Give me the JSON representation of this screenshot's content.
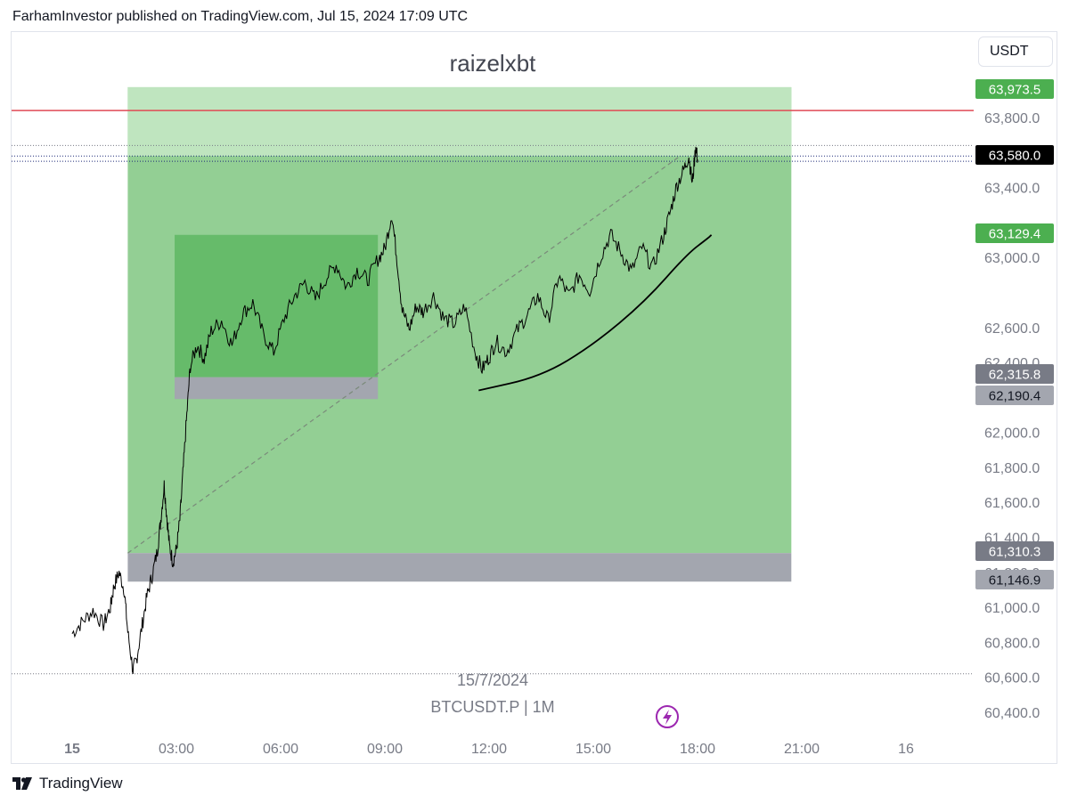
{
  "header": {
    "text": "FarhamInvestor published on TradingView.com, Jul 15, 2024 17:09 UTC"
  },
  "currency_button": {
    "label": "USDT"
  },
  "footer": {
    "brand": "TradingView"
  },
  "colors": {
    "up_zone": "#93cf94",
    "up_zone_light": "#bfe5bf",
    "inner_zone": "#66bb6a",
    "stop_zone": "#a3a6af",
    "red_line": "#e04a55",
    "candle": "#000000",
    "badge_green": "#4caf50",
    "badge_black": "#000000",
    "badge_grey_dark": "#787b86",
    "badge_grey_light": "#a3a6af",
    "axis_text": "#787b86",
    "lightning": "#9c27b0"
  },
  "chart_data": {
    "type": "line",
    "symbol": "BTCUSDT.P | 1M",
    "title": "raizelxbt",
    "date_watermark": "15/7/2024",
    "ylim": [
      60300,
      64100
    ],
    "x_range_hours": [
      -2,
      25.4
    ],
    "y_ticks": [
      "63,800.0",
      "63,400.0",
      "63,000.0",
      "62,600.0",
      "62,400.0",
      "62,000.0",
      "61,800.0",
      "61,600.0",
      "61,400.0",
      "61,200.0",
      "61,000.0",
      "60,800.0",
      "60,600.0",
      "60,400.0"
    ],
    "y_tick_values": [
      63800,
      63400,
      63000,
      62600,
      62400,
      62000,
      61800,
      61600,
      61400,
      61200,
      61000,
      60800,
      60600,
      60400
    ],
    "x_ticks": [
      "15",
      "03:00",
      "06:00",
      "09:00",
      "12:00",
      "15:00",
      "18:00",
      "21:00",
      "16"
    ],
    "x_tick_hours": [
      0,
      3,
      6,
      9,
      12,
      15,
      18,
      21,
      24
    ],
    "price_badges": [
      {
        "label": "63,973.5",
        "value": 63973.5,
        "style": "green"
      },
      {
        "label": "63,580.0",
        "value": 63580.0,
        "style": "black"
      },
      {
        "label": "63,129.4",
        "value": 63129.4,
        "style": "green"
      },
      {
        "label": "62,315.8",
        "value": 62315.8,
        "style": "grey_dark"
      },
      {
        "label": "62,190.4",
        "value": 62190.4,
        "style": "grey_light"
      },
      {
        "label": "61,310.3",
        "value": 61310.3,
        "style": "grey_dark"
      },
      {
        "label": "61,146.9",
        "value": 61146.9,
        "style": "grey_light"
      }
    ],
    "horizontal_lines": [
      {
        "value": 63840,
        "style": "red"
      },
      {
        "value": 63640,
        "style": "dotted"
      },
      {
        "value": 63580,
        "style": "dotted_blue"
      },
      {
        "value": 63550,
        "style": "dotted_blue"
      },
      {
        "value": 60620,
        "style": "dotted"
      }
    ],
    "zones": [
      {
        "kind": "target",
        "x": [
          1.6,
          20.7
        ],
        "y": [
          61310.3,
          63973.5
        ]
      },
      {
        "kind": "inner",
        "x": [
          2.95,
          8.8
        ],
        "y": [
          62315.8,
          63129.4
        ]
      },
      {
        "kind": "inner_stop",
        "x": [
          2.95,
          8.8
        ],
        "y": [
          62190.4,
          62315.8
        ]
      },
      {
        "kind": "stop",
        "x": [
          1.6,
          20.7
        ],
        "y": [
          61146.9,
          61310.3
        ]
      }
    ],
    "diagonal_line": {
      "x": [
        1.6,
        17.5
      ],
      "y": [
        61310,
        63580
      ]
    },
    "curve_points": [
      [
        11.7,
        62240
      ],
      [
        13.5,
        62320
      ],
      [
        15.0,
        62500
      ],
      [
        16.5,
        62750
      ],
      [
        17.7,
        63020
      ],
      [
        18.3,
        63110
      ],
      [
        18.4,
        63129
      ]
    ],
    "price_path": [
      [
        0.0,
        60850
      ],
      [
        0.3,
        60920
      ],
      [
        0.6,
        60980
      ],
      [
        0.9,
        60900
      ],
      [
        1.1,
        61000
      ],
      [
        1.2,
        61120
      ],
      [
        1.35,
        61200
      ],
      [
        1.5,
        61100
      ],
      [
        1.6,
        60860
      ],
      [
        1.75,
        60640
      ],
      [
        1.85,
        60700
      ],
      [
        2.0,
        60880
      ],
      [
        2.15,
        61060
      ],
      [
        2.3,
        61180
      ],
      [
        2.45,
        61320
      ],
      [
        2.55,
        61500
      ],
      [
        2.65,
        61700
      ],
      [
        2.72,
        61530
      ],
      [
        2.8,
        61350
      ],
      [
        2.9,
        61260
      ],
      [
        3.0,
        61330
      ],
      [
        3.1,
        61500
      ],
      [
        3.2,
        61800
      ],
      [
        3.3,
        62100
      ],
      [
        3.4,
        62380
      ],
      [
        3.6,
        62500
      ],
      [
        3.8,
        62420
      ],
      [
        4.0,
        62580
      ],
      [
        4.3,
        62640
      ],
      [
        4.6,
        62500
      ],
      [
        4.9,
        62680
      ],
      [
        5.2,
        62740
      ],
      [
        5.5,
        62560
      ],
      [
        5.8,
        62460
      ],
      [
        6.1,
        62650
      ],
      [
        6.4,
        62780
      ],
      [
        6.7,
        62860
      ],
      [
        7.0,
        62760
      ],
      [
        7.3,
        62880
      ],
      [
        7.6,
        62960
      ],
      [
        7.9,
        62830
      ],
      [
        8.2,
        62930
      ],
      [
        8.5,
        62870
      ],
      [
        8.8,
        62990
      ],
      [
        9.0,
        63050
      ],
      [
        9.2,
        63250
      ],
      [
        9.35,
        62990
      ],
      [
        9.5,
        62700
      ],
      [
        9.7,
        62590
      ],
      [
        9.9,
        62720
      ],
      [
        10.1,
        62690
      ],
      [
        10.4,
        62780
      ],
      [
        10.7,
        62650
      ],
      [
        11.0,
        62620
      ],
      [
        11.3,
        62720
      ],
      [
        11.6,
        62460
      ],
      [
        11.8,
        62360
      ],
      [
        12.0,
        62430
      ],
      [
        12.2,
        62520
      ],
      [
        12.5,
        62460
      ],
      [
        12.8,
        62580
      ],
      [
        13.1,
        62670
      ],
      [
        13.4,
        62780
      ],
      [
        13.7,
        62640
      ],
      [
        14.0,
        62890
      ],
      [
        14.3,
        62780
      ],
      [
        14.6,
        62900
      ],
      [
        14.9,
        62810
      ],
      [
        15.2,
        63000
      ],
      [
        15.5,
        63130
      ],
      [
        15.8,
        63030
      ],
      [
        16.1,
        62920
      ],
      [
        16.4,
        63060
      ],
      [
        16.7,
        62940
      ],
      [
        17.0,
        63110
      ],
      [
        17.2,
        63250
      ],
      [
        17.4,
        63410
      ],
      [
        17.6,
        63500
      ],
      [
        17.75,
        63580
      ],
      [
        17.85,
        63420
      ],
      [
        17.95,
        63640
      ],
      [
        18.0,
        63560
      ]
    ],
    "annotation_icon": "lightning-icon"
  }
}
